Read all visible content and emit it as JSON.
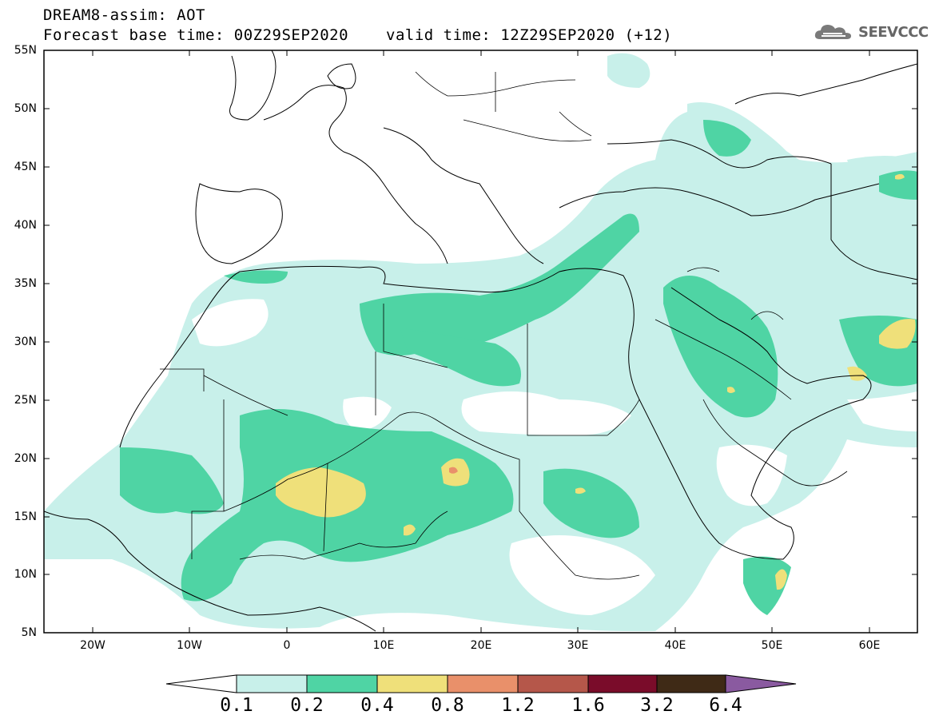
{
  "title": {
    "line1": "DREAM8-assim: AOT",
    "line2": "Forecast base time: 00Z29SEP2020",
    "line2b": "valid time: 12Z29SEP2020 (+12)"
  },
  "logo": {
    "text": "SEEVCCC",
    "icon": "cloud-icon"
  },
  "map": {
    "lon_range": [
      -25,
      65
    ],
    "lat_range": [
      5,
      55
    ],
    "lat_labels": [
      "55N",
      "50N",
      "45N",
      "40N",
      "35N",
      "30N",
      "25N",
      "20N",
      "15N",
      "10N",
      "5N"
    ],
    "lon_labels": [
      "20W",
      "10W",
      "0",
      "10E",
      "20E",
      "30E",
      "40E",
      "50E",
      "60E"
    ]
  },
  "colorbar": {
    "labels": [
      "0.1",
      "0.2",
      "0.4",
      "0.8",
      "1.2",
      "1.6",
      "3.2",
      "6.4"
    ],
    "colors": [
      "#ffffff",
      "#c8f0ea",
      "#4fd4a4",
      "#efe07a",
      "#e9906a",
      "#b5574a",
      "#7a0c2a",
      "#3f2a16",
      "#8a5aa0"
    ]
  },
  "colors": {
    "lvl1": "#c8f0ea",
    "lvl2": "#4fd4a4",
    "lvl3": "#efe07a",
    "lvl4": "#e9906a"
  }
}
